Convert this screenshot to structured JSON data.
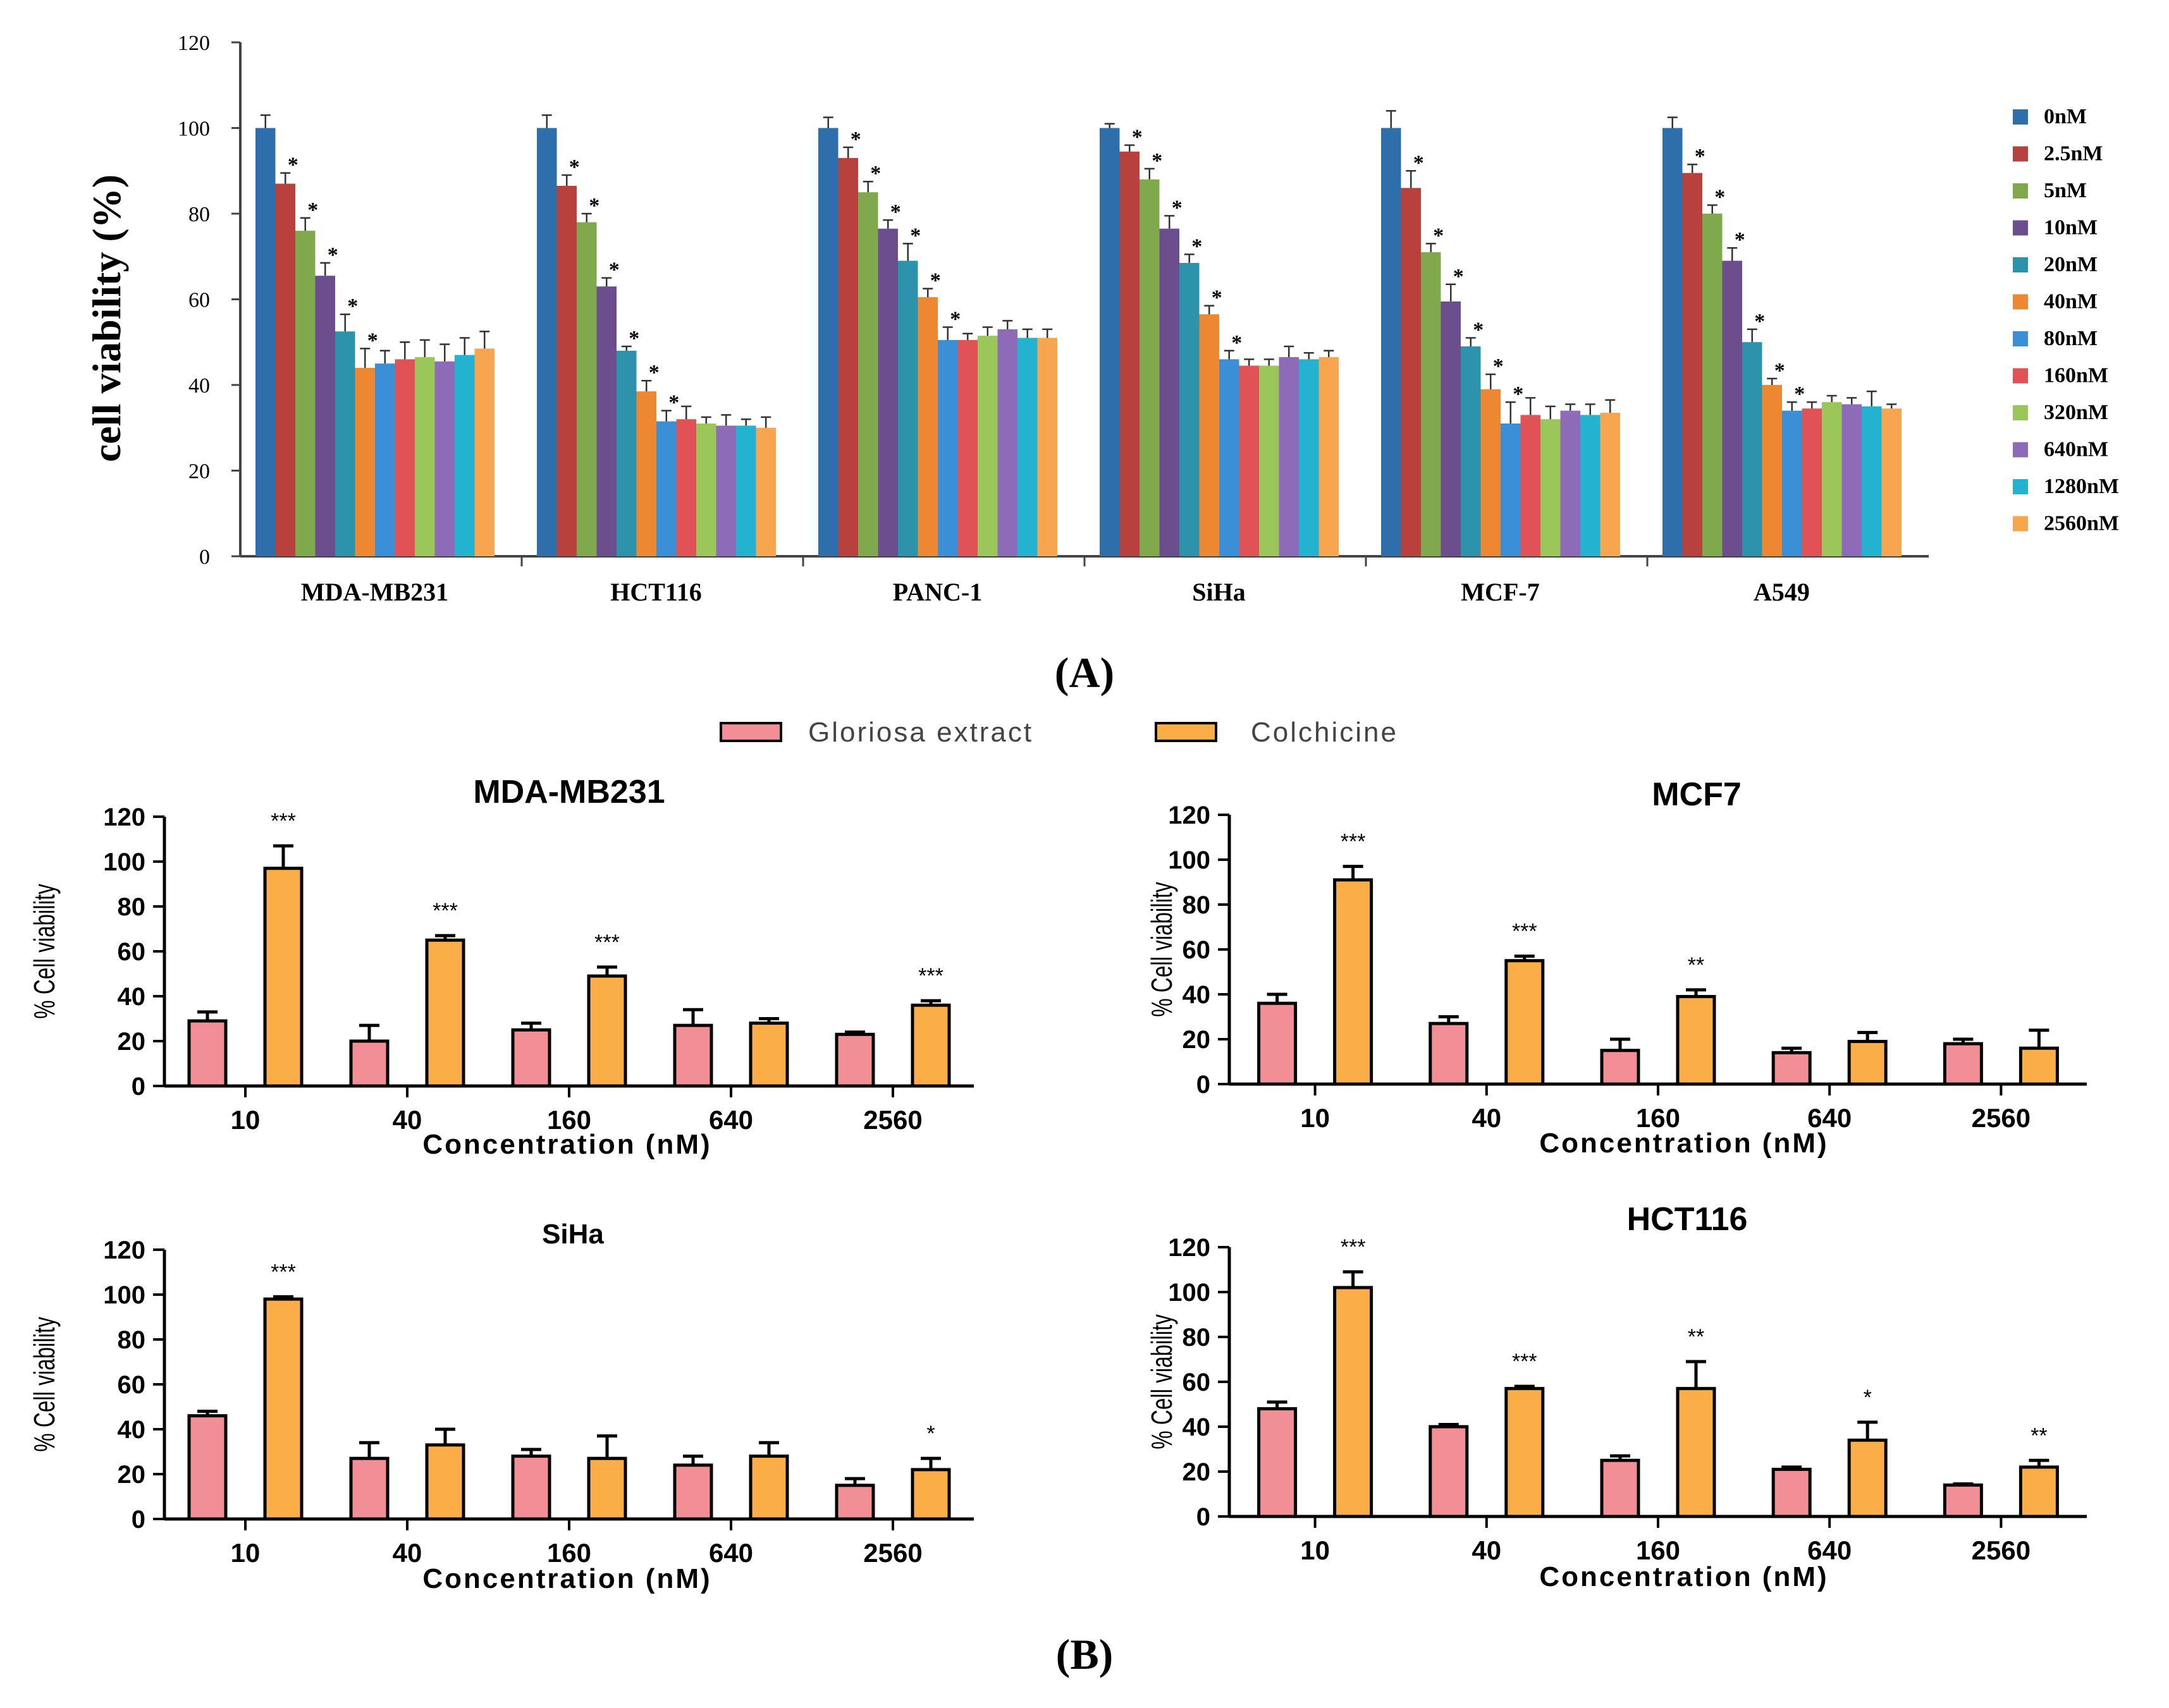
{
  "figure": {
    "panel_a_label": "(A)",
    "panel_b_label": "(B)",
    "legend_b": [
      {
        "name": "Gloriosa extract",
        "color": "#f28e96"
      },
      {
        "name": "Colchicine",
        "color": "#fbad48"
      }
    ]
  },
  "chart_data": [
    {
      "id": "A",
      "type": "bar",
      "title": "",
      "xlabel": "",
      "ylabel": "cell viability (%)",
      "ylim": [
        0,
        120
      ],
      "yticks": [
        0,
        20,
        40,
        60,
        80,
        100,
        120
      ],
      "categories": [
        "MDA-MB231",
        "HCT116",
        "PANC-1",
        "SiHa",
        "MCF-7",
        "A549"
      ],
      "legend_position": "right",
      "series": [
        {
          "name": "0nM",
          "color": "#2e6eaa",
          "values": [
            100,
            100,
            100,
            100,
            100,
            100
          ],
          "errors": [
            3,
            3,
            2.5,
            1,
            4,
            2.5
          ],
          "sig": [
            "",
            "",
            "",
            "",
            "",
            ""
          ]
        },
        {
          "name": "2.5nM",
          "color": "#b8413d",
          "values": [
            87,
            86.5,
            93,
            94.5,
            86,
            89.5
          ],
          "errors": [
            2.5,
            2.5,
            2.5,
            1.5,
            4,
            2
          ],
          "sig": [
            "*",
            "*",
            "*",
            "*",
            "*",
            "*"
          ]
        },
        {
          "name": "5nM",
          "color": "#80a94d",
          "values": [
            76,
            78,
            85,
            88,
            71,
            80
          ],
          "errors": [
            3,
            2,
            2.5,
            2.5,
            2,
            2
          ],
          "sig": [
            "*",
            "*",
            "*",
            "*",
            "*",
            "*"
          ]
        },
        {
          "name": "10nM",
          "color": "#6c4d8e",
          "values": [
            65.5,
            63,
            76.5,
            76.5,
            59.5,
            69
          ],
          "errors": [
            3,
            2,
            2,
            3,
            4,
            3
          ],
          "sig": [
            "*",
            "*",
            "*",
            "*",
            "*",
            "*"
          ]
        },
        {
          "name": "20nM",
          "color": "#2d93ad",
          "values": [
            52.5,
            48,
            69,
            68.5,
            49,
            50
          ],
          "errors": [
            4,
            1,
            4,
            2,
            2,
            3
          ],
          "sig": [
            "*",
            "*",
            "*",
            "*",
            "*",
            "*"
          ]
        },
        {
          "name": "40nM",
          "color": "#ed8732",
          "values": [
            44,
            38.5,
            60.5,
            56.5,
            39,
            40
          ],
          "errors": [
            4.5,
            2.5,
            2,
            2,
            3.5,
            1.5
          ],
          "sig": [
            "*",
            "*",
            "*",
            "*",
            "*",
            "*"
          ]
        },
        {
          "name": "80nM",
          "color": "#3b8fd6",
          "values": [
            45,
            31.5,
            50.5,
            46,
            31,
            34
          ],
          "errors": [
            3,
            2.5,
            3,
            2,
            5,
            2
          ],
          "sig": [
            "",
            "*",
            "*",
            "*",
            "*",
            "*"
          ]
        },
        {
          "name": "160nM",
          "color": "#e05256",
          "values": [
            46,
            32,
            50.5,
            44.5,
            33,
            34.5
          ],
          "errors": [
            4,
            3,
            1.5,
            1.5,
            4,
            1.5
          ],
          "sig": [
            "",
            "",
            "",
            "",
            "",
            ""
          ]
        },
        {
          "name": "320nM",
          "color": "#9bc75a",
          "values": [
            46.5,
            31,
            51.5,
            44.5,
            32,
            36
          ],
          "errors": [
            4,
            1.5,
            2,
            1.5,
            3,
            1.5
          ],
          "sig": [
            "",
            "",
            "",
            "",
            "",
            ""
          ]
        },
        {
          "name": "640nM",
          "color": "#8e6bb8",
          "values": [
            45.5,
            30.5,
            53,
            46.5,
            34,
            35.5
          ],
          "errors": [
            4,
            2.5,
            2,
            2.5,
            1.5,
            1.5
          ],
          "sig": [
            "",
            "",
            "",
            "",
            "",
            ""
          ]
        },
        {
          "name": "1280nM",
          "color": "#23b3d1",
          "values": [
            47,
            30.5,
            51,
            46,
            33,
            35
          ],
          "errors": [
            4,
            1.5,
            2,
            1.5,
            2.5,
            3.5
          ],
          "sig": [
            "",
            "",
            "",
            "",
            "",
            ""
          ]
        },
        {
          "name": "2560nM",
          "color": "#f8a550",
          "values": [
            48.5,
            30,
            51,
            46.5,
            33.5,
            34.5
          ],
          "errors": [
            4,
            2.5,
            2,
            1.5,
            3,
            1
          ],
          "sig": [
            "",
            "",
            "",
            "",
            "",
            ""
          ]
        }
      ]
    },
    {
      "id": "B1",
      "type": "bar",
      "title": "MDA-MB231",
      "xlabel": "Concentration (nM)",
      "ylabel": "% Cell viability",
      "ylim": [
        0,
        120
      ],
      "yticks": [
        0,
        20,
        40,
        60,
        80,
        100,
        120
      ],
      "categories": [
        "10",
        "40",
        "160",
        "640",
        "2560"
      ],
      "series": [
        {
          "name": "Gloriosa extract",
          "values": [
            29,
            20,
            25,
            27,
            23
          ],
          "errors": [
            4,
            7,
            3,
            7,
            1
          ]
        },
        {
          "name": "Colchicine",
          "values": [
            97,
            65,
            49,
            28,
            36
          ],
          "errors": [
            10,
            2,
            4,
            2,
            2
          ]
        }
      ],
      "significance": [
        "***",
        "***",
        "***",
        "",
        "***"
      ]
    },
    {
      "id": "B2",
      "type": "bar",
      "title": "MCF7",
      "xlabel": "Concentration (nM)",
      "ylabel": "% Cell viability",
      "ylim": [
        0,
        120
      ],
      "yticks": [
        0,
        20,
        40,
        60,
        80,
        100,
        120
      ],
      "categories": [
        "10",
        "40",
        "160",
        "640",
        "2560"
      ],
      "series": [
        {
          "name": "Gloriosa extract",
          "values": [
            36,
            27,
            15,
            14,
            18
          ],
          "errors": [
            4,
            3,
            5,
            2,
            2
          ]
        },
        {
          "name": "Colchicine",
          "values": [
            91,
            55,
            39,
            19,
            16
          ],
          "errors": [
            6,
            2,
            3,
            4,
            8
          ]
        }
      ],
      "significance": [
        "***",
        "***",
        "**",
        "",
        ""
      ]
    },
    {
      "id": "B3",
      "type": "bar",
      "title": "SiHa",
      "xlabel": "Concentration (nM)",
      "ylabel": "% Cell viability",
      "ylim": [
        0,
        120
      ],
      "yticks": [
        0,
        20,
        40,
        60,
        80,
        100,
        120
      ],
      "categories": [
        "10",
        "40",
        "160",
        "640",
        "2560"
      ],
      "series": [
        {
          "name": "Gloriosa extract",
          "values": [
            46,
            27,
            28,
            24,
            15
          ],
          "errors": [
            2,
            7,
            3,
            4,
            3
          ]
        },
        {
          "name": "Colchicine",
          "values": [
            98,
            33,
            27,
            28,
            22
          ],
          "errors": [
            1,
            7,
            10,
            6,
            5
          ]
        }
      ],
      "significance": [
        "***",
        "",
        "",
        "",
        "*"
      ]
    },
    {
      "id": "B4",
      "type": "bar",
      "title": "HCT116",
      "xlabel": "Concentration (nM)",
      "ylabel": "% Cell viability",
      "ylim": [
        0,
        120
      ],
      "yticks": [
        0,
        20,
        40,
        60,
        80,
        100,
        120
      ],
      "categories": [
        "10",
        "40",
        "160",
        "640",
        "2560"
      ],
      "series": [
        {
          "name": "Gloriosa extract",
          "values": [
            48,
            40,
            25,
            21,
            14
          ],
          "errors": [
            3,
            1,
            2,
            1,
            0.5
          ]
        },
        {
          "name": "Colchicine",
          "values": [
            102,
            57,
            57,
            34,
            22
          ],
          "errors": [
            7,
            1,
            12,
            8,
            3
          ]
        }
      ],
      "significance": [
        "***",
        "***",
        "**",
        "*",
        "**"
      ]
    }
  ]
}
